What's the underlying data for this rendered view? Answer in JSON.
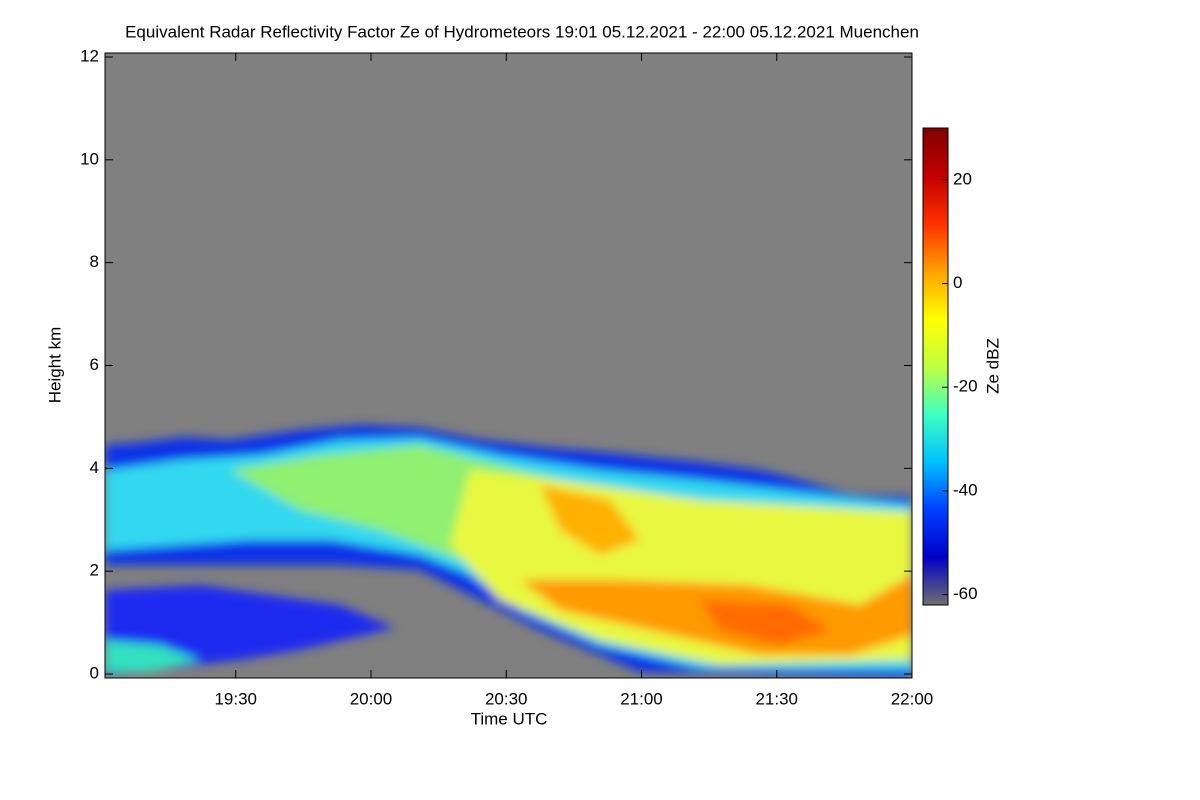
{
  "chart_data": {
    "type": "heatmap",
    "title": "Equivalent Radar Reflectivity Factor Ze of Hydrometeors   19:01 05.12.2021 - 22:00 05.12.2021 Muenchen",
    "x_label": "Time UTC",
    "y_label": "Height km",
    "xlim": [
      1141,
      1320
    ],
    "xticks": [
      {
        "value": 1170,
        "label": "19:30"
      },
      {
        "value": 1200,
        "label": "20:00"
      },
      {
        "value": 1230,
        "label": "20:30"
      },
      {
        "value": 1260,
        "label": "21:00"
      },
      {
        "value": 1290,
        "label": "21:30"
      },
      {
        "value": 1320,
        "label": "22:00"
      }
    ],
    "ylim": [
      0,
      12
    ],
    "yticks": [
      0,
      2,
      4,
      6,
      8,
      10,
      12
    ],
    "colorbar": {
      "label": "Ze dBZ",
      "lim": [
        -62,
        30
      ],
      "ticks": [
        20,
        0,
        -20,
        -40,
        -60
      ],
      "colors": [
        "#707070",
        "#0000c8",
        "#0040ff",
        "#00c0ff",
        "#40ffc0",
        "#c0ff40",
        "#ffff00",
        "#ffa000",
        "#ff3000",
        "#c00000",
        "#800000"
      ]
    }
  }
}
